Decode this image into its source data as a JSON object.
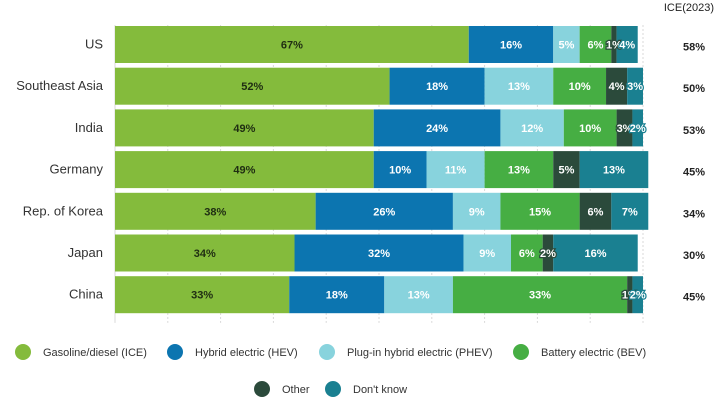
{
  "chart_data": {
    "type": "bar",
    "orientation": "horizontal",
    "stacked": true,
    "categories": [
      "US",
      "Southeast Asia",
      "India",
      "Germany",
      "Rep. of Korea",
      "Japan",
      "China"
    ],
    "xlim": [
      0,
      100
    ],
    "grid": true,
    "legend_position": "bottom",
    "series": [
      {
        "name": "Gasoline/diesel (ICE)",
        "color": "#84bb3c",
        "values": [
          67,
          52,
          49,
          49,
          38,
          34,
          33
        ]
      },
      {
        "name": "Hybrid electric (HEV)",
        "color": "#0c75b0",
        "values": [
          16,
          18,
          24,
          10,
          26,
          32,
          18
        ]
      },
      {
        "name": "Plug-in hybrid electric (PHEV)",
        "color": "#88d3dd",
        "values": [
          5,
          13,
          12,
          11,
          9,
          9,
          13
        ]
      },
      {
        "name": "Battery electric (BEV)",
        "color": "#46ae43",
        "values": [
          6,
          10,
          10,
          13,
          15,
          6,
          33
        ]
      },
      {
        "name": "Other",
        "color": "#2b4a3b",
        "values": [
          1,
          4,
          3,
          5,
          6,
          2,
          1
        ]
      },
      {
        "name": "Don't know",
        "color": "#1a8091",
        "values": [
          4,
          3,
          2,
          13,
          7,
          16,
          2
        ]
      }
    ],
    "side_column": {
      "header": "ICE(2023)",
      "values": [
        "58%",
        "50%",
        "53%",
        "45%",
        "34%",
        "30%",
        "45%"
      ]
    }
  }
}
